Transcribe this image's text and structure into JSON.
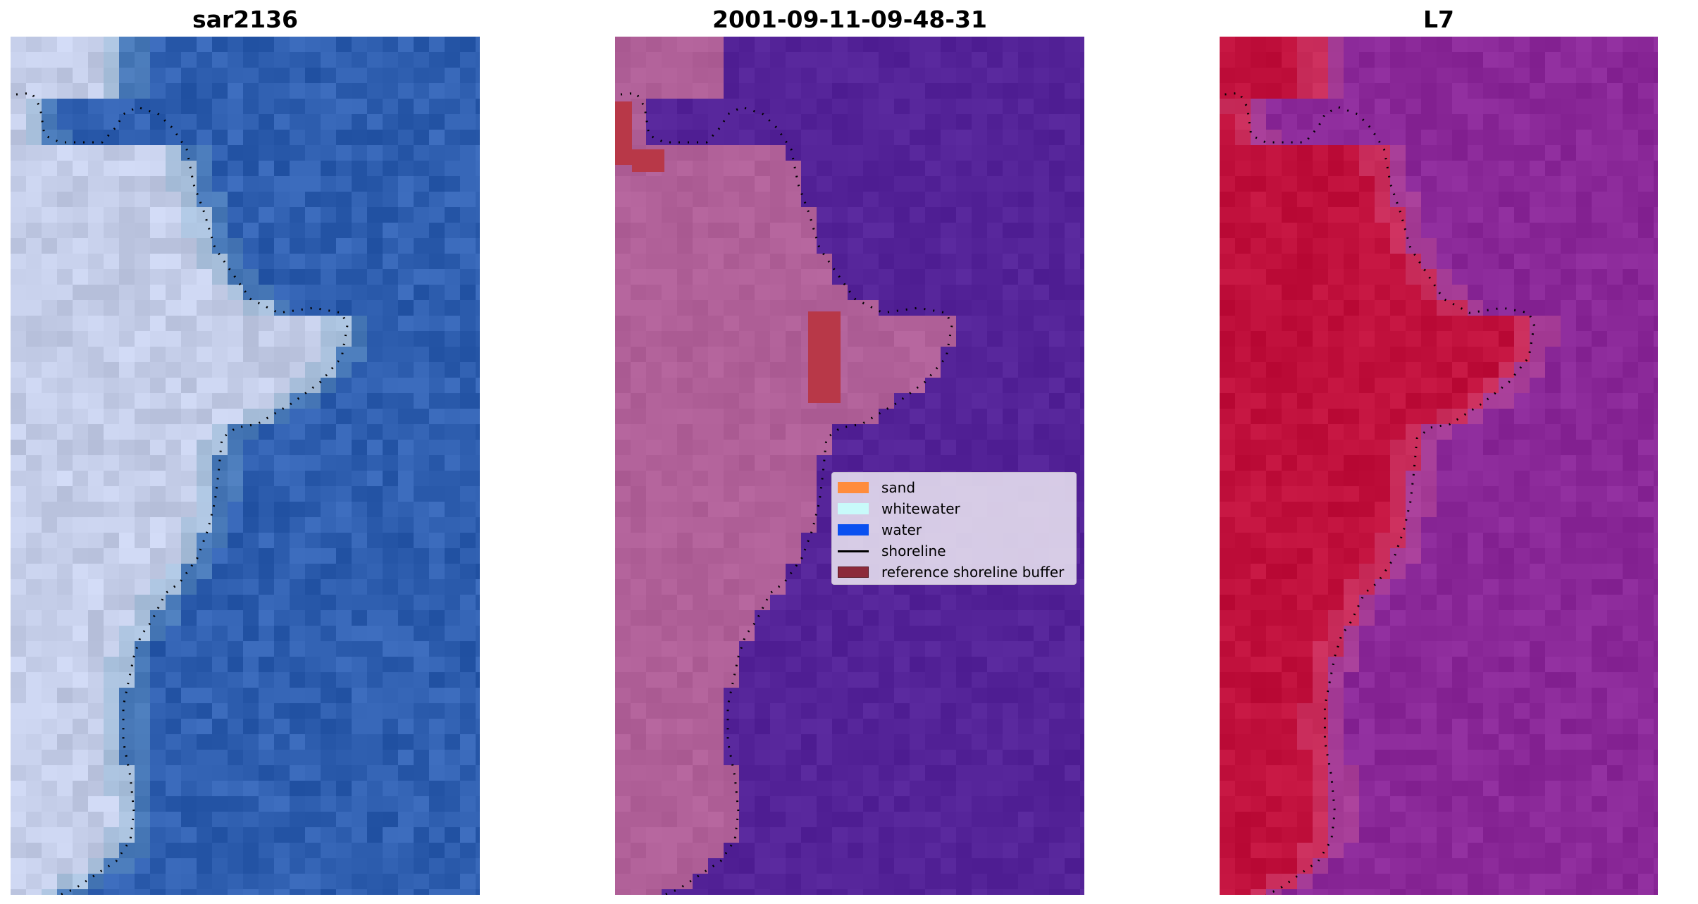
{
  "panels": [
    {
      "title": "sar2136"
    },
    {
      "title": "2001-09-11-09-48-31"
    },
    {
      "title": "L7"
    }
  ],
  "legend": {
    "items": [
      {
        "label": "sand",
        "color": "#ff8c3c",
        "kind": "patch"
      },
      {
        "label": "whitewater",
        "color": "#c8fafa",
        "kind": "patch"
      },
      {
        "label": "water",
        "color": "#0a50f0",
        "kind": "patch"
      },
      {
        "label": "shoreline",
        "color": "#000000",
        "kind": "line"
      },
      {
        "label": "reference shoreline buffer",
        "color": "#8c2a3a",
        "kind": "patch"
      }
    ]
  },
  "colors": {
    "rgb_water": "#2f5fb0",
    "rgb_land": "#c4cde8",
    "class_water": "#542398",
    "class_land": "#b06098",
    "class_buffer": "#b83848",
    "ndwi_water": "#8a2898",
    "ndwi_land": "#c0103c"
  }
}
